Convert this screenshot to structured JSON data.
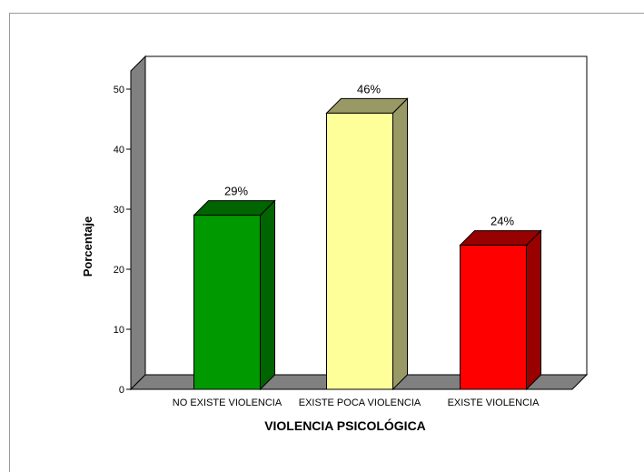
{
  "chart_data": {
    "type": "bar",
    "style": "3d",
    "categories": [
      "NO EXISTE VIOLENCIA",
      "EXISTE POCA VIOLENCIA",
      "EXISTE VIOLENCIA"
    ],
    "values": [
      29,
      46,
      24
    ],
    "data_labels": [
      "29%",
      "46%",
      "24%"
    ],
    "colors": [
      "#009900",
      "#FFFF99",
      "#FF0000"
    ],
    "side_colors": [
      "#006400",
      "#999966",
      "#990000"
    ],
    "top_colors": [
      "#006400",
      "#999966",
      "#990000"
    ],
    "ylabel": "Porcentaje",
    "xlabel": "VIOLENCIA PSICOLÓGICA",
    "ylim": [
      0,
      50
    ],
    "yticks": [
      0,
      10,
      20,
      30,
      40,
      50
    ],
    "grid": false,
    "legend": "none",
    "wall_color": "#808080"
  }
}
